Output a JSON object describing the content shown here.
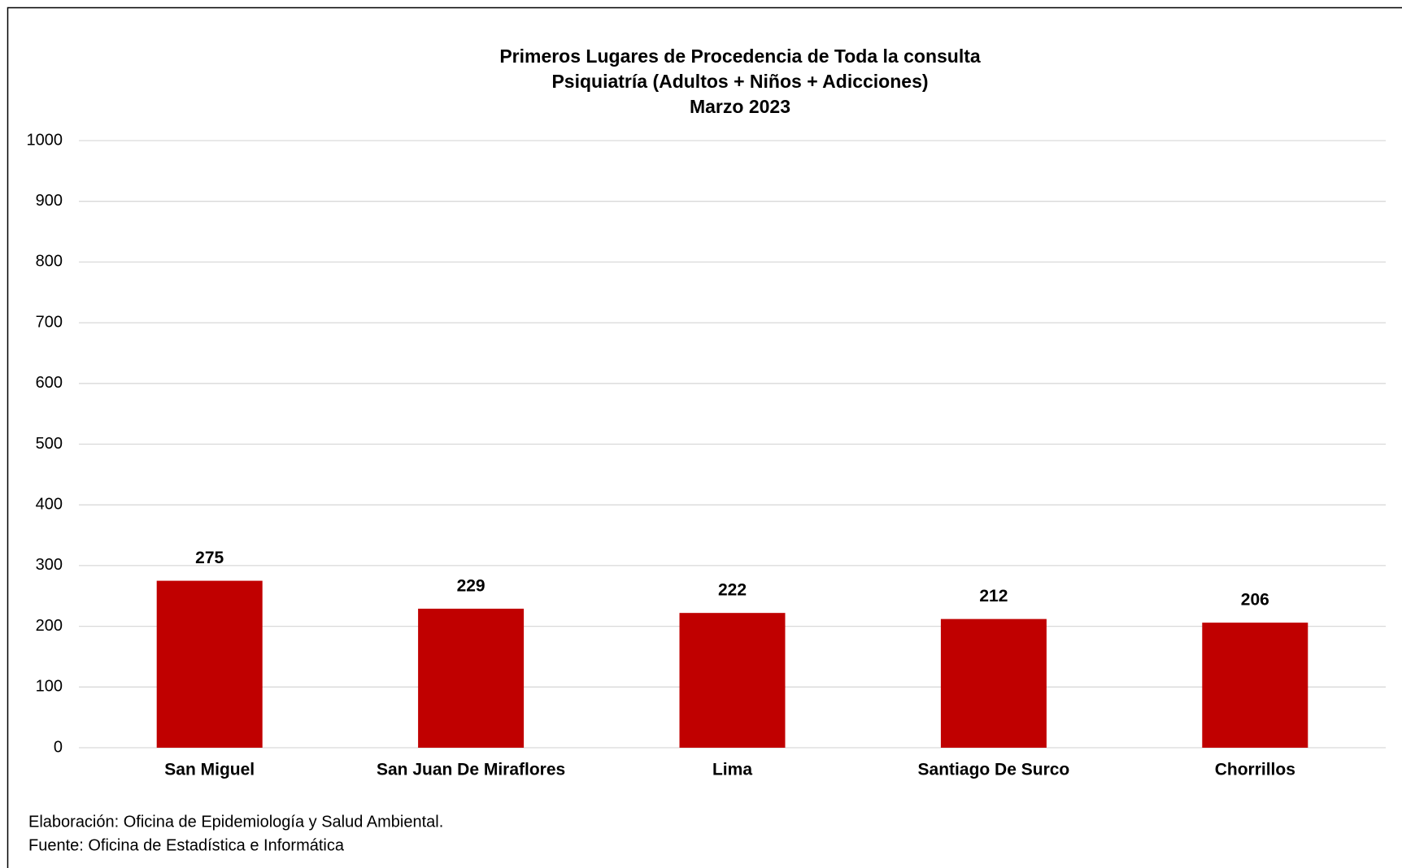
{
  "chart_data": {
    "type": "bar",
    "title": [
      "Primeros Lugares de Procedencia de Toda la consulta",
      "Psiquiatría (Adultos + Niños + Adicciones)",
      "Marzo 2023"
    ],
    "categories": [
      "San Miguel",
      "San Juan De Miraflores",
      "Lima",
      "Santiago De Surco",
      "Chorrillos"
    ],
    "values": [
      275,
      229,
      222,
      212,
      206
    ],
    "color": "#c00000",
    "ylim": [
      0,
      1000
    ],
    "yticks": [
      0,
      100,
      200,
      300,
      400,
      500,
      600,
      700,
      800,
      900,
      1000
    ],
    "grid": true,
    "notes": [
      "Elaboración: Oficina de Epidemiología y Salud Ambiental.",
      "Fuente:  Oficina de Estadística e Informática"
    ]
  }
}
